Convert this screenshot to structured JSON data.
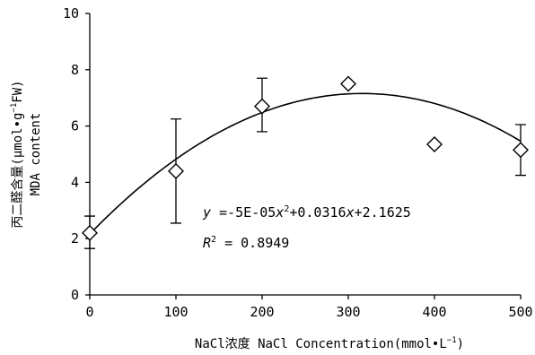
{
  "chart_data": {
    "type": "scatter",
    "title": "",
    "xlabel": "NaCl浓度 NaCl Concentration(mmol•L⁻¹)",
    "ylabel_cn": "丙二醛含量(μmol•g⁻¹FW)",
    "ylabel_en": "MDA content",
    "xlim": [
      0,
      500
    ],
    "ylim": [
      0,
      10
    ],
    "xticks": [
      0,
      100,
      200,
      300,
      400,
      500
    ],
    "yticks": [
      0,
      2,
      4,
      6,
      8,
      10
    ],
    "grid": false,
    "points": [
      {
        "x": 0,
        "y": 2.2,
        "err_low": 1.65,
        "err_high": 2.8
      },
      {
        "x": 100,
        "y": 4.4,
        "err_low": 2.55,
        "err_high": 6.25
      },
      {
        "x": 200,
        "y": 6.7,
        "err_low": 5.8,
        "err_high": 7.7
      },
      {
        "x": 300,
        "y": 7.5,
        "err_low": null,
        "err_high": null
      },
      {
        "x": 400,
        "y": 5.35,
        "err_low": null,
        "err_high": null
      },
      {
        "x": 500,
        "y": 5.15,
        "err_low": 4.25,
        "err_high": 6.05
      }
    ],
    "trendline": {
      "type": "polynomial-2",
      "coefficients": {
        "a": -5e-05,
        "b": 0.0316,
        "c": 2.1625
      }
    },
    "equation_label": "y =-5E-05x²+0.0316x+2.1625",
    "r2_label": "R² = 0.8949"
  }
}
